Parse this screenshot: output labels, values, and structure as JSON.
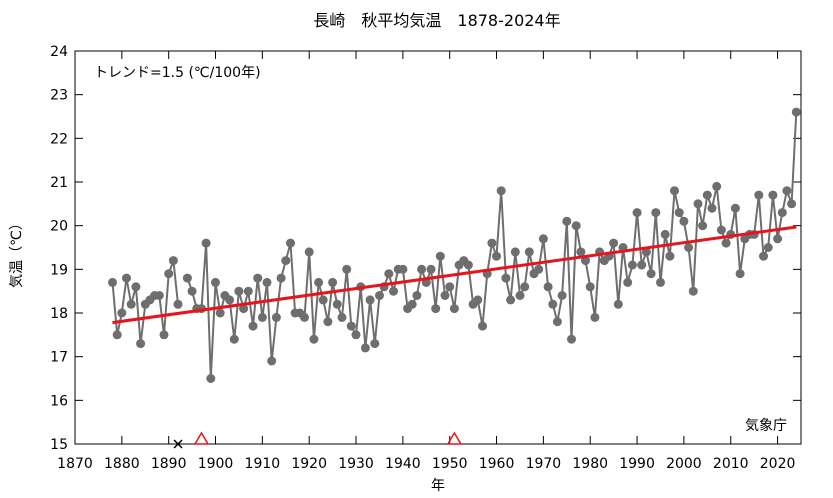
{
  "chart_data": {
    "type": "line",
    "title": "長崎　秋平均気温　1878-2024年",
    "xlabel": "年",
    "ylabel": "気温（℃）",
    "trend_label": "トレンド=1.5 (℃/100年)",
    "source_label": "気象庁",
    "xlim": [
      1870,
      2025
    ],
    "ylim": [
      15,
      24
    ],
    "x_ticks": [
      1870,
      1880,
      1890,
      1900,
      1910,
      1920,
      1930,
      1940,
      1950,
      1960,
      1970,
      1980,
      1990,
      2000,
      2010,
      2020
    ],
    "y_ticks": [
      15,
      16,
      17,
      18,
      19,
      20,
      21,
      22,
      23,
      24
    ],
    "grid": false,
    "series": [
      {
        "x": [
          1878,
          1879,
          1880,
          1881,
          1882,
          1883,
          1884,
          1885,
          1886,
          1887,
          1888,
          1889,
          1890,
          1891,
          1892,
          1893,
          1894,
          1895,
          1896,
          1897,
          1898,
          1899,
          1900,
          1901,
          1902,
          1903,
          1904,
          1905,
          1906,
          1907,
          1908,
          1909,
          1910,
          1911,
          1912,
          1913,
          1914,
          1915,
          1916,
          1917,
          1918,
          1919,
          1920,
          1921,
          1922,
          1923,
          1924,
          1925,
          1926,
          1927,
          1928,
          1929,
          1930,
          1931,
          1932,
          1933,
          1934,
          1935,
          1936,
          1937,
          1938,
          1939,
          1940,
          1941,
          1942,
          1943,
          1944,
          1945,
          1946,
          1947,
          1948,
          1949,
          1950,
          1951,
          1952,
          1953,
          1954,
          1955,
          1956,
          1957,
          1958,
          1959,
          1960,
          1961,
          1962,
          1963,
          1964,
          1965,
          1966,
          1967,
          1968,
          1969,
          1970,
          1971,
          1972,
          1973,
          1974,
          1975,
          1976,
          1977,
          1978,
          1979,
          1980,
          1981,
          1982,
          1983,
          1984,
          1985,
          1986,
          1987,
          1988,
          1989,
          1990,
          1991,
          1992,
          1993,
          1994,
          1995,
          1996,
          1997,
          1998,
          1999,
          2000,
          2001,
          2002,
          2003,
          2004,
          2005,
          2006,
          2007,
          2008,
          2009,
          2010,
          2011,
          2012,
          2013,
          2014,
          2015,
          2016,
          2017,
          2018,
          2019,
          2020,
          2021,
          2022,
          2023,
          2024
        ],
        "values": [
          18.7,
          17.5,
          18.0,
          18.8,
          18.2,
          18.6,
          17.3,
          18.2,
          18.3,
          18.4,
          18.4,
          17.5,
          18.9,
          19.2,
          18.2,
          null,
          18.8,
          18.5,
          18.1,
          18.1,
          19.6,
          16.5,
          18.7,
          18.0,
          18.4,
          18.3,
          17.4,
          18.5,
          18.1,
          18.5,
          17.7,
          18.8,
          17.9,
          18.7,
          16.9,
          17.9,
          18.8,
          19.2,
          19.6,
          18.0,
          18.0,
          17.9,
          19.4,
          17.4,
          18.7,
          18.3,
          17.8,
          18.7,
          18.2,
          17.9,
          19.0,
          17.7,
          17.5,
          18.6,
          17.2,
          18.3,
          17.3,
          18.4,
          18.6,
          18.9,
          18.5,
          19.0,
          19.0,
          18.1,
          18.2,
          18.4,
          19.0,
          18.7,
          19.0,
          18.1,
          19.3,
          18.4,
          18.6,
          18.1,
          19.1,
          19.2,
          19.1,
          18.2,
          18.3,
          17.7,
          18.9,
          19.6,
          19.3,
          20.8,
          18.8,
          18.3,
          19.4,
          18.4,
          18.6,
          19.4,
          18.9,
          19.0,
          19.7,
          18.6,
          18.2,
          17.8,
          18.4,
          20.1,
          17.4,
          20.0,
          19.4,
          19.2,
          18.6,
          17.9,
          19.4,
          19.2,
          19.3,
          19.6,
          18.2,
          19.5,
          18.7,
          19.1,
          20.3,
          19.1,
          19.4,
          18.9,
          20.3,
          18.7,
          19.8,
          19.3,
          20.8,
          20.3,
          20.1,
          19.5,
          18.5,
          20.5,
          20.0,
          20.7,
          20.4,
          20.9,
          19.9,
          19.6,
          19.8,
          20.4,
          18.9,
          19.7,
          19.8,
          19.8,
          20.7,
          19.3,
          19.5,
          20.7,
          19.7,
          20.3,
          20.8,
          20.5,
          22.6
        ]
      }
    ],
    "trend_line": {
      "x": [
        1878,
        2024
      ],
      "y": [
        17.78,
        19.97
      ]
    },
    "markers": [
      {
        "symbol": "×",
        "x": 1892,
        "y": 15,
        "color": "#000000"
      },
      {
        "symbol": "triangle",
        "x": 1897,
        "y": 15,
        "color": "#e8141b"
      },
      {
        "symbol": "triangle",
        "x": 1951,
        "y": 15,
        "color": "#e8141b"
      }
    ],
    "colors": {
      "series": "#6e6e6e",
      "trend": "#e8141b",
      "axis": "#000000"
    }
  }
}
